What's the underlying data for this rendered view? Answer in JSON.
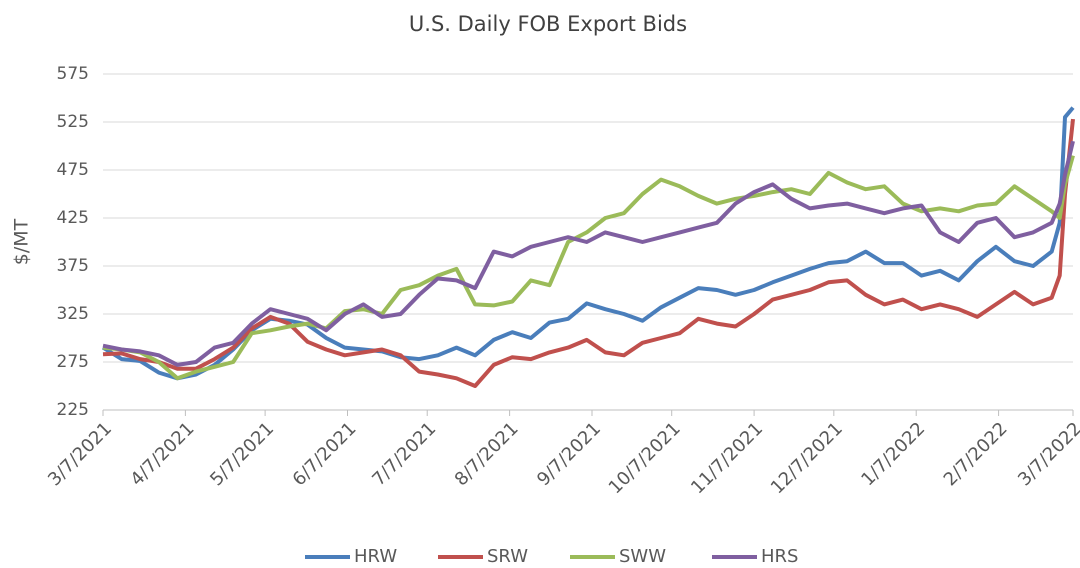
{
  "chart_data": {
    "type": "line",
    "title": "U.S. Daily FOB Export Bids",
    "y_label": "$/MT",
    "x": [
      "3/7/2021",
      "3/14/2021",
      "3/21/2021",
      "3/28/2021",
      "4/4/2021",
      "4/11/2021",
      "4/18/2021",
      "4/25/2021",
      "5/2/2021",
      "5/9/2021",
      "5/16/2021",
      "5/23/2021",
      "5/30/2021",
      "6/6/2021",
      "6/13/2021",
      "6/20/2021",
      "6/27/2021",
      "7/4/2021",
      "7/11/2021",
      "7/18/2021",
      "7/25/2021",
      "8/1/2021",
      "8/8/2021",
      "8/15/2021",
      "8/22/2021",
      "8/29/2021",
      "9/5/2021",
      "9/12/2021",
      "9/19/2021",
      "9/26/2021",
      "10/3/2021",
      "10/10/2021",
      "10/17/2021",
      "10/24/2021",
      "10/31/2021",
      "11/7/2021",
      "11/14/2021",
      "11/21/2021",
      "11/28/2021",
      "12/5/2021",
      "12/12/2021",
      "12/19/2021",
      "12/26/2021",
      "1/2/2022",
      "1/9/2022",
      "1/16/2022",
      "1/23/2022",
      "1/30/2022",
      "2/6/2022",
      "2/13/2022",
      "2/20/2022",
      "2/27/2022",
      "3/2/2022",
      "3/4/2022",
      "3/7/2022"
    ],
    "series": [
      {
        "name": "HRW",
        "color": "#4a7ebb",
        "values": [
          290,
          278,
          276,
          264,
          258,
          262,
          272,
          288,
          308,
          320,
          318,
          314,
          300,
          290,
          288,
          286,
          280,
          278,
          282,
          290,
          282,
          298,
          306,
          300,
          316,
          320,
          336,
          330,
          325,
          318,
          332,
          342,
          352,
          350,
          345,
          350,
          358,
          365,
          372,
          378,
          380,
          390,
          378,
          378,
          365,
          370,
          360,
          380,
          395,
          380,
          375,
          390,
          420,
          530,
          540
        ]
      },
      {
        "name": "SRW",
        "color": "#c0504d",
        "values": [
          283,
          284,
          278,
          275,
          268,
          268,
          278,
          290,
          310,
          322,
          315,
          296,
          288,
          282,
          285,
          288,
          282,
          265,
          262,
          258,
          250,
          272,
          280,
          278,
          285,
          290,
          298,
          285,
          282,
          295,
          300,
          305,
          320,
          315,
          312,
          325,
          340,
          345,
          350,
          358,
          360,
          345,
          335,
          340,
          330,
          335,
          330,
          322,
          335,
          348,
          335,
          342,
          365,
          450,
          528
        ]
      },
      {
        "name": "SWW",
        "color": "#9bbb59",
        "values": [
          290,
          288,
          285,
          275,
          258,
          265,
          270,
          275,
          305,
          308,
          312,
          315,
          310,
          328,
          330,
          325,
          350,
          355,
          365,
          372,
          335,
          334,
          338,
          360,
          355,
          400,
          410,
          425,
          430,
          450,
          465,
          458,
          448,
          440,
          445,
          448,
          452,
          455,
          450,
          472,
          462,
          455,
          458,
          440,
          432,
          435,
          432,
          438,
          440,
          458,
          445,
          432,
          425,
          460,
          490
        ]
      },
      {
        "name": "HRS",
        "color": "#7f5fa0",
        "values": [
          292,
          288,
          286,
          282,
          272,
          275,
          290,
          295,
          315,
          330,
          325,
          320,
          308,
          325,
          335,
          322,
          325,
          345,
          362,
          360,
          352,
          390,
          385,
          395,
          400,
          405,
          400,
          410,
          405,
          400,
          405,
          410,
          415,
          420,
          440,
          452,
          460,
          445,
          435,
          438,
          440,
          435,
          430,
          435,
          438,
          410,
          400,
          420,
          425,
          405,
          410,
          420,
          440,
          470,
          505
        ]
      }
    ],
    "ylim": [
      225,
      575
    ],
    "yticks": [
      225,
      275,
      325,
      375,
      425,
      475,
      525,
      575
    ],
    "xlim": [
      "3/7/2021",
      "3/7/2022"
    ],
    "xticks": [
      "3/7/2021",
      "4/7/2021",
      "5/7/2021",
      "6/7/2021",
      "7/7/2021",
      "8/7/2021",
      "9/7/2021",
      "10/7/2021",
      "11/7/2021",
      "12/7/2021",
      "1/7/2022",
      "2/7/2022",
      "3/7/2022"
    ],
    "grid": true,
    "legend": "bottom"
  }
}
